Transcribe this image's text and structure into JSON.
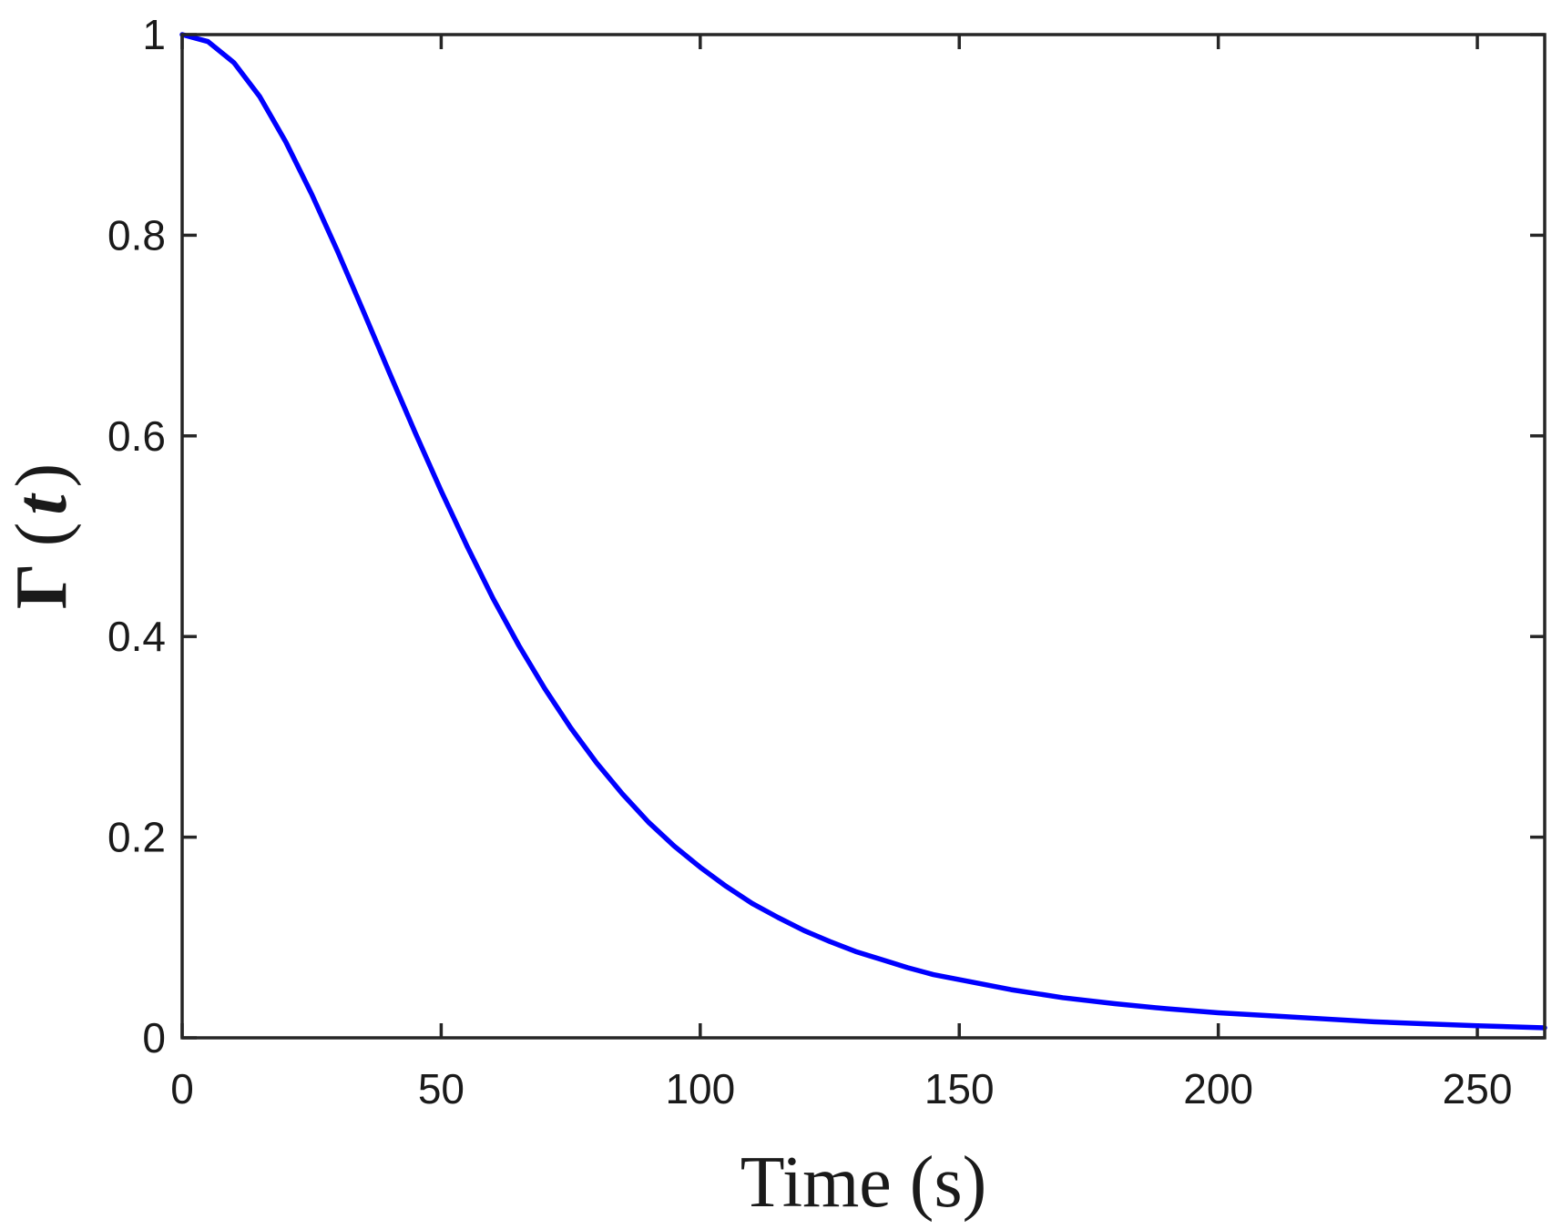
{
  "chart_data": {
    "type": "line",
    "title": "",
    "xlabel": "Time (s)",
    "ylabel_symbol": "Γ",
    "ylabel_arg": "t",
    "xlim": [
      0,
      263
    ],
    "ylim": [
      0,
      1
    ],
    "x_ticks": [
      0,
      50,
      100,
      150,
      200,
      250
    ],
    "x_tick_labels": [
      "0",
      "50",
      "100",
      "150",
      "200",
      "250"
    ],
    "y_ticks": [
      0,
      0.2,
      0.4,
      0.6,
      0.8,
      1
    ],
    "y_tick_labels": [
      "0",
      "0.2",
      "0.4",
      "0.6",
      "0.8",
      "1"
    ],
    "grid": false,
    "series": [
      {
        "color": "#0000ff",
        "x": [
          0,
          5,
          10,
          15,
          20,
          25,
          30,
          35,
          40,
          45,
          50,
          55,
          60,
          65,
          70,
          75,
          80,
          85,
          90,
          95,
          100,
          105,
          110,
          115,
          120,
          125,
          130,
          135,
          140,
          145,
          150,
          160,
          170,
          180,
          190,
          200,
          210,
          220,
          230,
          240,
          250,
          263
        ],
        "y": [
          1.0,
          0.993,
          0.972,
          0.938,
          0.893,
          0.841,
          0.784,
          0.724,
          0.663,
          0.603,
          0.545,
          0.49,
          0.438,
          0.391,
          0.348,
          0.309,
          0.274,
          0.243,
          0.215,
          0.191,
          0.17,
          0.151,
          0.134,
          0.12,
          0.107,
          0.096,
          0.086,
          0.078,
          0.07,
          0.063,
          0.058,
          0.048,
          0.04,
          0.034,
          0.029,
          0.025,
          0.022,
          0.019,
          0.016,
          0.014,
          0.012,
          0.01
        ]
      }
    ]
  }
}
